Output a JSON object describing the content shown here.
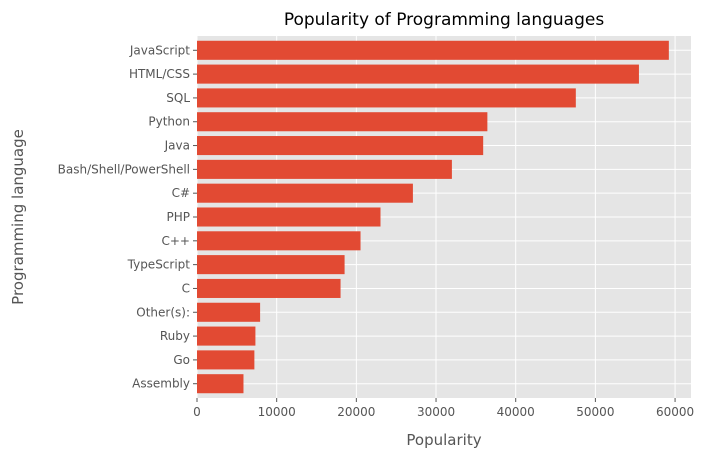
{
  "chart_data": {
    "type": "bar",
    "orientation": "horizontal",
    "title": "Popularity of Programming languages",
    "xlabel": "Popularity",
    "ylabel": "Programming language",
    "categories": [
      "JavaScript",
      "HTML/CSS",
      "SQL",
      "Python",
      "Java",
      "Bash/Shell/PowerShell",
      "C#",
      "PHP",
      "C++",
      "TypeScript",
      "C",
      "Other(s):",
      "Ruby",
      "Go",
      "Assembly"
    ],
    "values": [
      59219,
      55466,
      47544,
      36443,
      35917,
      31991,
      27097,
      23030,
      20524,
      18523,
      18017,
      7920,
      7331,
      7201,
      5833
    ],
    "xlim": [
      0,
      62000
    ],
    "xticks": [
      0,
      10000,
      20000,
      30000,
      40000,
      50000,
      60000
    ],
    "xtick_labels": [
      "0",
      "10000",
      "20000",
      "30000",
      "40000",
      "50000",
      "60000"
    ],
    "grid": true,
    "style": "ggplot",
    "bar_color": "#E24A33",
    "background_color": "#E5E5E5",
    "grid_color": "#FFFFFF"
  }
}
